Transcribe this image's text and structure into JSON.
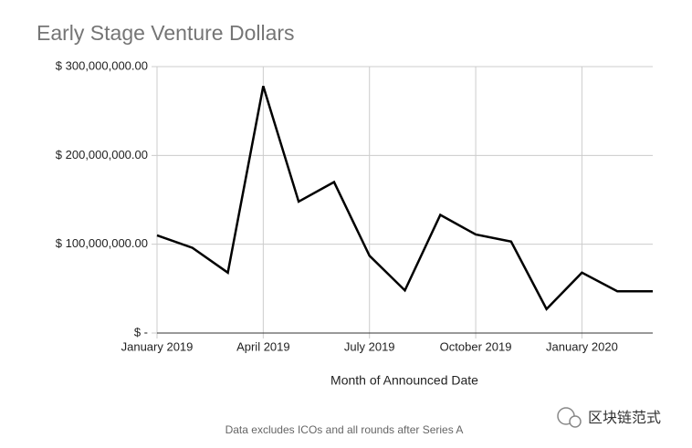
{
  "chart_data": {
    "type": "line",
    "title": "Early Stage Venture Dollars",
    "x_label": "Month of Announced Date",
    "note": "Data excludes ICOs and all rounds after Series A",
    "watermark": "区块链范式",
    "categories": [
      "January 2019",
      null,
      null,
      "April 2019",
      null,
      null,
      "July 2019",
      null,
      null,
      "October 2019",
      null,
      null,
      "January 2020",
      null,
      null
    ],
    "series": [
      {
        "name": "Early Stage Venture Dollars",
        "color": "#000000",
        "values": [
          110000000,
          96000000,
          68000000,
          278000000,
          148000000,
          170000000,
          87000000,
          48000000,
          133000000,
          111000000,
          103000000,
          27000000,
          68000000,
          47000000,
          47000000
        ]
      }
    ],
    "ylim": [
      0,
      300000000
    ],
    "yticks": [
      {
        "value": 0,
        "label": "$ -"
      },
      {
        "value": 100000000,
        "label": "$ 100,000,000.00"
      },
      {
        "value": 200000000,
        "label": "$ 200,000,000.00"
      },
      {
        "value": 300000000,
        "label": "$ 300,000,000.00"
      }
    ],
    "grid": true
  }
}
